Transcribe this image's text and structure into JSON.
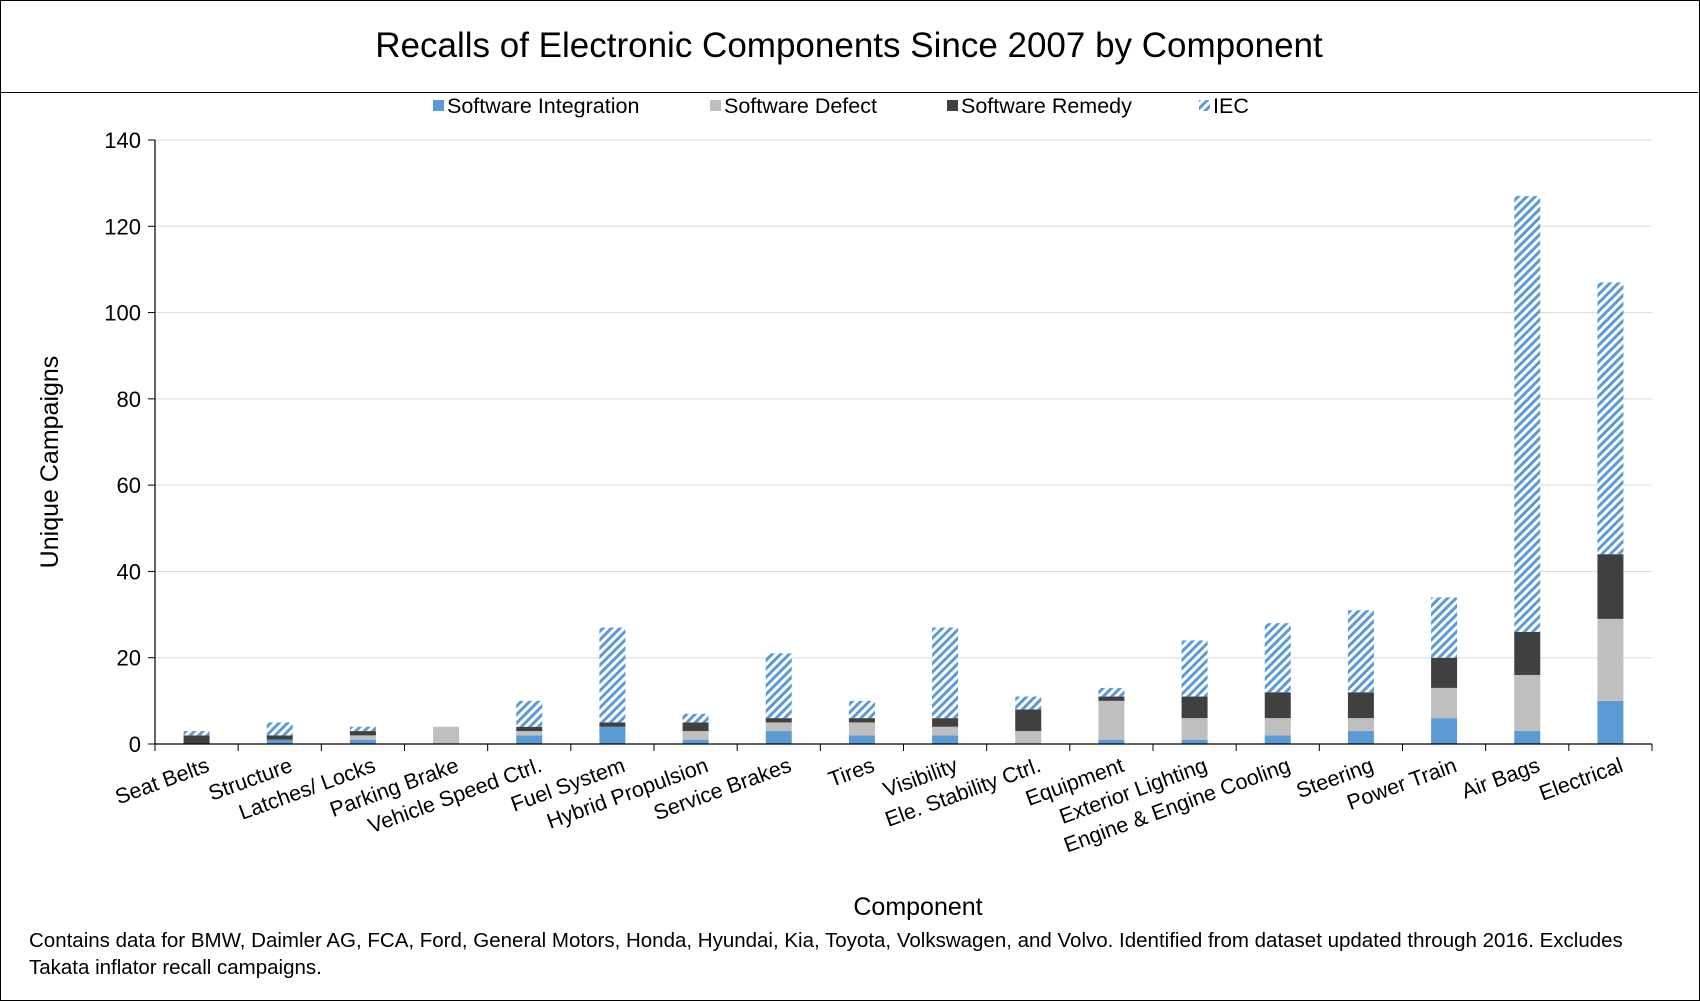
{
  "chart_data": {
    "type": "bar",
    "stacked": true,
    "title": "Recalls of Electronic Components Since 2007 by Component",
    "xlabel": "Component",
    "ylabel": "Unique Campaigns",
    "ylim": [
      0,
      140
    ],
    "yticks": [
      0,
      20,
      40,
      60,
      80,
      100,
      120,
      140
    ],
    "grid": true,
    "legend_position": "top",
    "categories": [
      "Seat Belts",
      "Structure",
      "Latches/ Locks",
      "Parking Brake",
      "Vehicle Speed Ctrl.",
      "Fuel System",
      "Hybrid Propulsion",
      "Service Brakes",
      "Tires",
      "Visibility",
      "Ele. Stability Ctrl.",
      "Equipment",
      "Exterior Lighting",
      "Engine & Engine Cooling",
      "Steering",
      "Power Train",
      "Air Bags",
      "Electrical"
    ],
    "series": [
      {
        "name": "Software Integration",
        "color": "#5b9bd5",
        "pattern": "solid",
        "values": [
          0,
          1,
          1,
          0,
          2,
          4,
          1,
          3,
          2,
          2,
          0,
          1,
          1,
          2,
          3,
          6,
          3,
          10
        ]
      },
      {
        "name": "Software Defect",
        "color": "#bfbfbf",
        "pattern": "solid",
        "values": [
          0,
          0,
          1,
          4,
          1,
          0,
          2,
          2,
          3,
          2,
          3,
          9,
          5,
          4,
          3,
          7,
          13,
          19
        ]
      },
      {
        "name": "Software Remedy",
        "color": "#404040",
        "pattern": "solid",
        "values": [
          2,
          1,
          1,
          0,
          1,
          1,
          2,
          1,
          1,
          2,
          5,
          1,
          5,
          6,
          6,
          7,
          10,
          15
        ]
      },
      {
        "name": "IEC",
        "color": "#5b9bd5",
        "pattern": "hatch",
        "values": [
          1,
          3,
          1,
          0,
          6,
          22,
          2,
          15,
          4,
          21,
          3,
          2,
          13,
          16,
          19,
          14,
          101,
          63
        ]
      }
    ]
  },
  "footnote": "Contains data for BMW, Daimler AG, FCA, Ford, General Motors, Honda, Hyundai, Kia, Toyota, Volkswagen, and Volvo. Identified from dataset updated through 2016. Excludes Takata inflator recall campaigns."
}
